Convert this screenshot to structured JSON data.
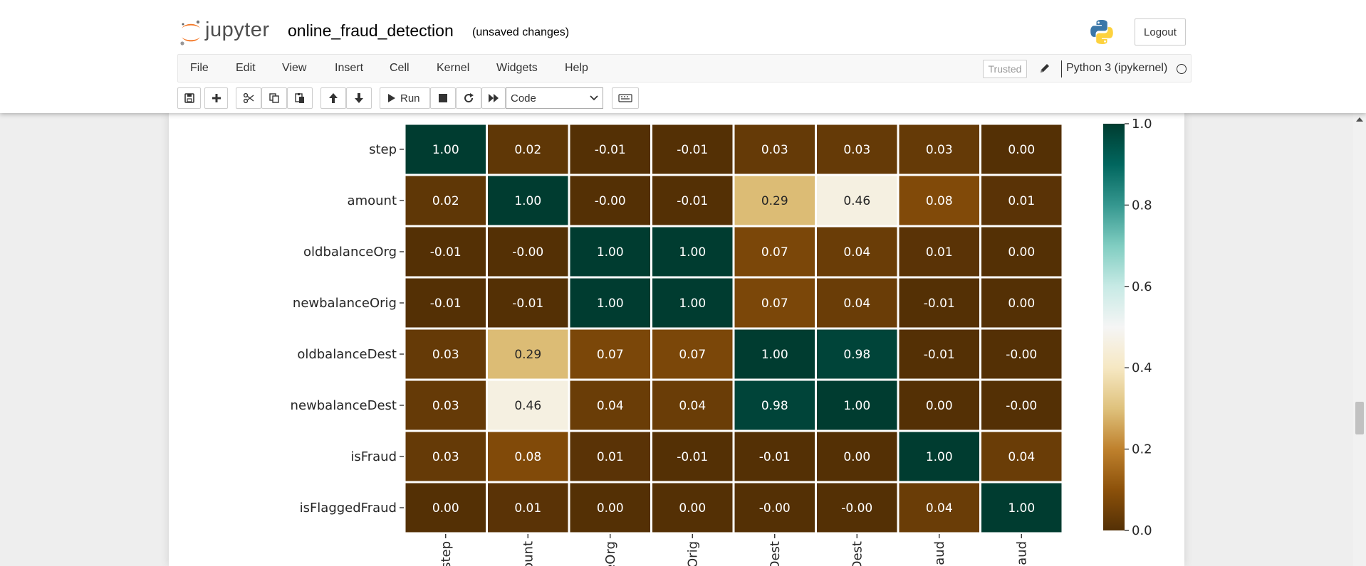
{
  "header": {
    "logo_text": "jupyter",
    "notebook_name": "online_fraud_detection",
    "save_status": "(unsaved changes)",
    "logout_label": "Logout"
  },
  "menubar": {
    "items": [
      "File",
      "Edit",
      "View",
      "Insert",
      "Cell",
      "Kernel",
      "Widgets",
      "Help"
    ],
    "trusted_label": "Trusted",
    "kernel_name": "Python 3 (ipykernel)"
  },
  "toolbar": {
    "run_label": "Run",
    "cell_type": "Code"
  },
  "chart_data": {
    "type": "heatmap",
    "rows": [
      "step",
      "amount",
      "oldbalanceOrg",
      "newbalanceOrig",
      "oldbalanceDest",
      "newbalanceDest",
      "isFraud",
      "isFlaggedFraud"
    ],
    "columns_visible_tick_text": [
      "step",
      "ount",
      "eOrg",
      "Orig",
      "Dest",
      "Dest",
      "aud",
      "aud"
    ],
    "values": [
      [
        1.0,
        0.02,
        -0.01,
        -0.01,
        0.03,
        0.03,
        0.03,
        0.0
      ],
      [
        0.02,
        1.0,
        -0.0,
        -0.01,
        0.29,
        0.46,
        0.08,
        0.01
      ],
      [
        -0.01,
        -0.0,
        1.0,
        1.0,
        0.07,
        0.04,
        0.01,
        0.0
      ],
      [
        -0.01,
        -0.01,
        1.0,
        1.0,
        0.07,
        0.04,
        -0.01,
        0.0
      ],
      [
        0.03,
        0.29,
        0.07,
        0.07,
        1.0,
        0.98,
        -0.01,
        -0.0
      ],
      [
        0.03,
        0.46,
        0.04,
        0.04,
        0.98,
        1.0,
        0.0,
        -0.0
      ],
      [
        0.03,
        0.08,
        0.01,
        -0.01,
        -0.01,
        0.0,
        1.0,
        0.04
      ],
      [
        0.0,
        0.01,
        0.0,
        0.0,
        -0.0,
        -0.0,
        0.04,
        1.0
      ]
    ],
    "labels": [
      [
        "1.00",
        "0.02",
        "-0.01",
        "-0.01",
        "0.03",
        "0.03",
        "0.03",
        "0.00"
      ],
      [
        "0.02",
        "1.00",
        "-0.00",
        "-0.01",
        "0.29",
        "0.46",
        "0.08",
        "0.01"
      ],
      [
        "-0.01",
        "-0.00",
        "1.00",
        "1.00",
        "0.07",
        "0.04",
        "0.01",
        "0.00"
      ],
      [
        "-0.01",
        "-0.01",
        "1.00",
        "1.00",
        "0.07",
        "0.04",
        "-0.01",
        "0.00"
      ],
      [
        "0.03",
        "0.29",
        "0.07",
        "0.07",
        "1.00",
        "0.98",
        "-0.01",
        "-0.00"
      ],
      [
        "0.03",
        "0.46",
        "0.04",
        "0.04",
        "0.98",
        "1.00",
        "0.00",
        "-0.00"
      ],
      [
        "0.03",
        "0.08",
        "0.01",
        "-0.01",
        "-0.01",
        "0.00",
        "1.00",
        "0.04"
      ],
      [
        "0.00",
        "0.01",
        "0.00",
        "0.00",
        "-0.00",
        "-0.00",
        "0.04",
        "1.00"
      ]
    ],
    "colormap": "BrBG",
    "vmin": 0.0,
    "vmax": 1.0,
    "colorbar_ticks": [
      0.0,
      0.2,
      0.4,
      0.6,
      0.8,
      1.0
    ],
    "colorbar_tick_labels": [
      "0.0",
      "0.2",
      "0.4",
      "0.6",
      "0.8",
      "1.0"
    ],
    "grid_line_color": "#ffffff"
  }
}
